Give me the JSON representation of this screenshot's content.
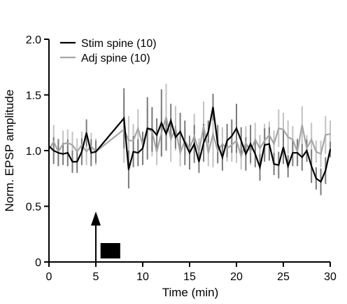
{
  "chart_data": {
    "type": "line",
    "xlabel": "Time (min)",
    "ylabel": "Norm. EPSP amplitude",
    "xlim": [
      0,
      30
    ],
    "ylim": [
      0,
      2.0
    ],
    "x_ticks": [
      "0",
      "5",
      "10",
      "15",
      "20",
      "25",
      "30"
    ],
    "y_ticks": [
      "0",
      "0.5",
      "1.0",
      "1.5",
      "2.0"
    ],
    "legend_placement": "top-left",
    "grid": false,
    "stimulus_marker": {
      "arrow_x": 5,
      "bar_x": [
        5.5,
        7.6
      ]
    },
    "series": [
      {
        "name": "Stim spine (10)",
        "color": "#000000",
        "x": [
          0,
          0.5,
          1,
          1.5,
          2,
          2.5,
          3,
          3.5,
          4,
          4.5,
          5,
          8,
          8.5,
          9,
          9.5,
          10,
          10.5,
          11,
          11.5,
          12,
          12.5,
          13,
          13.5,
          14,
          14.5,
          15,
          15.5,
          16,
          16.5,
          17,
          17.5,
          18,
          18.5,
          19,
          19.5,
          20,
          20.5,
          21,
          21.5,
          22,
          22.5,
          23,
          23.5,
          24,
          24.5,
          25,
          25.5,
          26,
          26.5,
          27,
          27.5,
          28,
          28.5,
          29,
          29.5,
          30
        ],
        "y": [
          1.04,
          1.0,
          0.98,
          0.97,
          0.98,
          0.9,
          0.9,
          0.99,
          1.16,
          0.98,
          0.99,
          1.29,
          0.83,
          0.99,
          0.98,
          1.02,
          1.2,
          1.19,
          1.14,
          1.25,
          1.15,
          1.27,
          1.12,
          1.17,
          1.07,
          0.98,
          1.06,
          0.9,
          1.07,
          1.17,
          1.39,
          1.06,
          0.94,
          1.09,
          1.13,
          1.2,
          1.09,
          0.97,
          1.06,
          0.97,
          0.85,
          1.05,
          1.06,
          0.88,
          0.87,
          1.03,
          0.86,
          0.98,
          0.98,
          0.94,
          1.0,
          0.86,
          0.75,
          0.72,
          0.82,
          1.01
        ],
        "errors": [
          0.12,
          0.12,
          0.12,
          0.1,
          0.12,
          0.1,
          0.1,
          0.12,
          0.12,
          0.12,
          0.1,
          0.27,
          0.17,
          0.14,
          0.12,
          0.15,
          0.28,
          0.2,
          0.15,
          0.3,
          0.15,
          0.15,
          0.1,
          0.17,
          0.2,
          0.15,
          0.17,
          0.1,
          0.17,
          0.1,
          0.12,
          0.17,
          0.12,
          0.15,
          0.15,
          0.22,
          0.12,
          0.15,
          0.17,
          0.12,
          0.12,
          0.15,
          0.15,
          0.1,
          0.12,
          0.15,
          0.1,
          0.12,
          0.12,
          0.12,
          0.1,
          0.15,
          0.1,
          0.12,
          0.12,
          0.07
        ]
      },
      {
        "name": "Adj spine (10)",
        "color": "#a6a6a6",
        "x": [
          0,
          0.5,
          1,
          1.5,
          2,
          2.5,
          3,
          3.5,
          4,
          4.5,
          5,
          8,
          8.5,
          9,
          9.5,
          10,
          10.5,
          11,
          11.5,
          12,
          12.5,
          13,
          13.5,
          14,
          14.5,
          15,
          15.5,
          16,
          16.5,
          17,
          17.5,
          18,
          18.5,
          19,
          19.5,
          20,
          20.5,
          21,
          21.5,
          22,
          22.5,
          23,
          23.5,
          24,
          24.5,
          25,
          25.5,
          26,
          26.5,
          27,
          27.5,
          28,
          28.5,
          29,
          29.5,
          30
        ],
        "y": [
          1.01,
          1.08,
          0.99,
          1.06,
          1.07,
          1.05,
          0.99,
          1.05,
          0.99,
          1.04,
          0.99,
          1.19,
          1.09,
          1.09,
          1.2,
          1.05,
          1.2,
          1.17,
          0.99,
          1.16,
          1.3,
          1.1,
          1.2,
          0.98,
          1.09,
          1.02,
          1.13,
          0.99,
          1.22,
          0.98,
          1.15,
          1.0,
          1.06,
          1.02,
          1.05,
          1.09,
          0.95,
          1.07,
          0.99,
          1.1,
          1.02,
          1.09,
          1.14,
          1.06,
          1.2,
          1.19,
          1.12,
          1.1,
          0.99,
          1.23,
          1.02,
          1.1,
          0.99,
          0.97,
          1.14,
          1.15
        ],
        "errors": [
          0.12,
          0.15,
          0.12,
          0.12,
          0.12,
          0.12,
          0.12,
          0.12,
          0.12,
          0.12,
          0.12,
          0.3,
          0.22,
          0.15,
          0.17,
          0.12,
          0.2,
          0.22,
          0.12,
          0.22,
          0.3,
          0.2,
          0.2,
          0.12,
          0.12,
          0.12,
          0.2,
          0.12,
          0.22,
          0.12,
          0.3,
          0.12,
          0.15,
          0.12,
          0.15,
          0.2,
          0.12,
          0.15,
          0.12,
          0.15,
          0.12,
          0.15,
          0.12,
          0.12,
          0.17,
          0.15,
          0.15,
          0.12,
          0.12,
          0.17,
          0.12,
          0.15,
          0.1,
          0.12,
          0.17,
          0.12
        ]
      }
    ]
  }
}
